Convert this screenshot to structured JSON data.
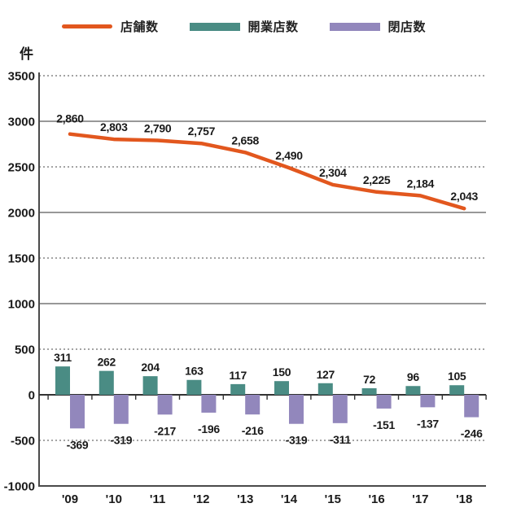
{
  "chart_data": {
    "type": "combo",
    "unit_label": "件",
    "categories": [
      "'09",
      "'10",
      "'11",
      "'12",
      "'13",
      "'14",
      "'15",
      "'16",
      "'17",
      "'18"
    ],
    "ylim": [
      -1000,
      3500
    ],
    "ytick_step": 500,
    "grid": "on",
    "legend_position": "top",
    "gridlines": {
      "solid": [
        3000,
        2000,
        1000
      ],
      "dotted": [
        3500,
        2500,
        1500,
        500,
        -500
      ],
      "zero_line": 0,
      "bottom_line": -1000
    },
    "series": [
      {
        "name": "店舗数",
        "type": "line",
        "color": "#e2571e",
        "values": [
          2860,
          2803,
          2790,
          2757,
          2658,
          2490,
          2304,
          2225,
          2184,
          2043
        ],
        "labels": [
          "2,860",
          "2,803",
          "2,790",
          "2,757",
          "2,658",
          "2,490",
          "2,304",
          "2,225",
          "2,184",
          "2,043"
        ]
      },
      {
        "name": "開業店数",
        "type": "bar",
        "color": "#4a8c84",
        "values": [
          311,
          262,
          204,
          163,
          117,
          150,
          127,
          72,
          96,
          105
        ],
        "labels": [
          "311",
          "262",
          "204",
          "163",
          "117",
          "150",
          "127",
          "72",
          "96",
          "105"
        ]
      },
      {
        "name": "閉店数",
        "type": "bar",
        "color": "#9287bc",
        "values": [
          -369,
          -319,
          -217,
          -196,
          -216,
          -319,
          -311,
          -151,
          -137,
          -246
        ],
        "labels": [
          "-369",
          "-319",
          "-217",
          "-196",
          "-216",
          "-319",
          "-311",
          "-151",
          "-137",
          "-246"
        ]
      }
    ]
  }
}
